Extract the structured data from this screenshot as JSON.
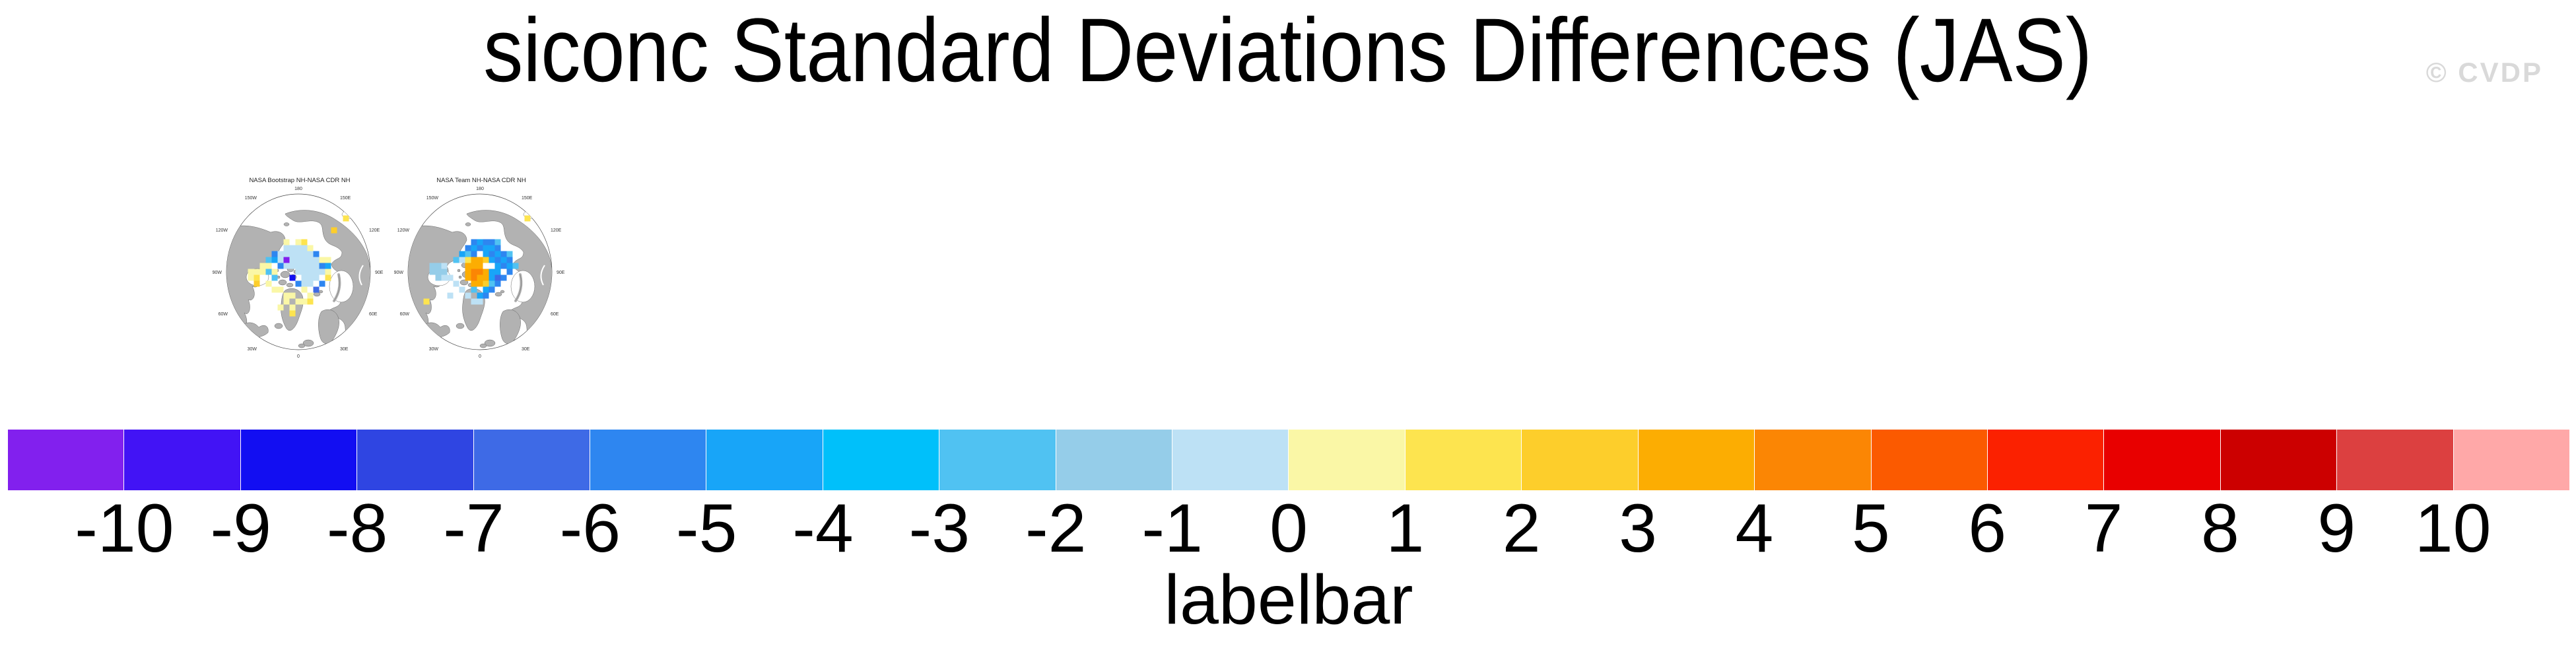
{
  "title": "siconc Standard Deviations Differences (JAS)",
  "watermark": "© CVDP",
  "panels": [
    {
      "title": "NASA Bootstrap NH-NASA CDR NH",
      "lon_labels": [
        "180",
        "150W",
        "150E",
        "120W",
        "120E",
        "90W",
        "90E",
        "60W",
        "60E",
        "30W",
        "30E",
        "0"
      ],
      "cells": [
        [
          -2,
          -4,
          10
        ],
        [
          -1,
          -4,
          10
        ],
        [
          0,
          -4,
          10
        ],
        [
          1,
          -4,
          10
        ],
        [
          -3,
          -3,
          10
        ],
        [
          -2,
          -3,
          10
        ],
        [
          -1,
          -3,
          10
        ],
        [
          0,
          -3,
          10
        ],
        [
          1,
          -3,
          10
        ],
        [
          2,
          -3,
          10
        ],
        [
          -3,
          -2,
          10
        ],
        [
          -1,
          -2,
          10
        ],
        [
          0,
          -2,
          10
        ],
        [
          1,
          -2,
          10
        ],
        [
          2,
          -2,
          10
        ],
        [
          3,
          -2,
          10
        ],
        [
          -2,
          -1,
          10
        ],
        [
          -1,
          -1,
          10
        ],
        [
          0,
          -1,
          10
        ],
        [
          1,
          -1,
          10
        ],
        [
          2,
          -1,
          10
        ],
        [
          3,
          -1,
          10
        ],
        [
          0,
          0,
          10
        ],
        [
          1,
          0,
          10
        ],
        [
          2,
          0,
          10
        ],
        [
          3,
          0,
          10
        ],
        [
          4,
          0,
          10
        ],
        [
          1,
          1,
          10
        ],
        [
          2,
          1,
          10
        ],
        [
          3,
          1,
          10
        ],
        [
          2,
          2,
          10
        ],
        [
          1,
          2,
          10
        ],
        [
          -3,
          -1,
          5
        ],
        [
          3,
          -3,
          5
        ],
        [
          4,
          -1,
          5
        ],
        [
          0,
          2,
          5
        ],
        [
          4,
          2,
          5
        ],
        [
          -4,
          -3,
          5
        ],
        [
          -4,
          -2,
          6
        ],
        [
          5,
          -1,
          6
        ],
        [
          3,
          3,
          4
        ],
        [
          -1,
          1,
          2
        ],
        [
          -2,
          -2,
          0
        ],
        [
          -5,
          0,
          8
        ],
        [
          -4,
          1,
          8
        ],
        [
          -5,
          -2,
          8
        ],
        [
          -8,
          0,
          11
        ],
        [
          -7,
          0,
          11
        ],
        [
          -6,
          0,
          11
        ],
        [
          -8,
          1,
          11
        ],
        [
          -6,
          -1,
          11
        ],
        [
          -5,
          -1,
          11
        ],
        [
          -5,
          2,
          11
        ],
        [
          -4,
          3,
          11
        ],
        [
          -3,
          3,
          11
        ],
        [
          -2,
          4,
          11
        ],
        [
          -2,
          5,
          11
        ],
        [
          -3,
          6,
          11
        ],
        [
          -1,
          6,
          11
        ],
        [
          0,
          5,
          11
        ],
        [
          -2,
          -5,
          11
        ],
        [
          0,
          -5,
          11
        ],
        [
          2,
          -4,
          11
        ],
        [
          4,
          -2,
          11
        ],
        [
          5,
          -2,
          11
        ],
        [
          1,
          3,
          11
        ],
        [
          2,
          4,
          11
        ],
        [
          1,
          5,
          11
        ],
        [
          -4,
          0,
          11
        ],
        [
          5,
          0,
          11
        ],
        [
          -1,
          4,
          11
        ],
        [
          8,
          -9,
          12
        ],
        [
          -7,
          1,
          12
        ],
        [
          -1,
          7,
          12
        ],
        [
          2,
          5,
          12
        ],
        [
          1,
          -5,
          12
        ],
        [
          5,
          1,
          12
        ],
        [
          6,
          -7,
          13
        ],
        [
          -7,
          2,
          13
        ]
      ]
    },
    {
      "title": "NASA Team NH-NASA CDR NH",
      "lon_labels": [
        "180",
        "150W",
        "150E",
        "120W",
        "120E",
        "90W",
        "90E",
        "60W",
        "60E",
        "30W",
        "30E",
        "0"
      ],
      "cells": [
        [
          -1,
          0,
          15
        ],
        [
          0,
          0,
          15
        ],
        [
          -1,
          1,
          15
        ],
        [
          -2,
          -1,
          14
        ],
        [
          -1,
          -1,
          14
        ],
        [
          0,
          -1,
          14
        ],
        [
          -2,
          0,
          14
        ],
        [
          1,
          0,
          14
        ],
        [
          -2,
          1,
          14
        ],
        [
          0,
          1,
          14
        ],
        [
          1,
          1,
          14
        ],
        [
          -1,
          2,
          14
        ],
        [
          0,
          2,
          14
        ],
        [
          -1,
          -2,
          14
        ],
        [
          0,
          -2,
          14
        ],
        [
          1,
          -2,
          13
        ],
        [
          1,
          2,
          13
        ],
        [
          -2,
          -2,
          12
        ],
        [
          8,
          -9,
          12
        ],
        [
          -9,
          5,
          12
        ],
        [
          -1,
          -5,
          5
        ],
        [
          1,
          -5,
          5
        ],
        [
          2,
          -5,
          5
        ],
        [
          -2,
          -4,
          5
        ],
        [
          0,
          -4,
          5
        ],
        [
          3,
          -4,
          5
        ],
        [
          -1,
          -3,
          5
        ],
        [
          2,
          -3,
          5
        ],
        [
          4,
          -3,
          5
        ],
        [
          3,
          -2,
          5
        ],
        [
          5,
          -2,
          5
        ],
        [
          4,
          -1,
          5
        ],
        [
          5,
          0,
          5
        ],
        [
          3,
          2,
          5
        ],
        [
          2,
          3,
          5
        ],
        [
          1,
          4,
          5
        ],
        [
          4,
          1,
          5
        ],
        [
          0,
          -5,
          6
        ],
        [
          -1,
          -4,
          6
        ],
        [
          1,
          -4,
          6
        ],
        [
          2,
          -4,
          6
        ],
        [
          1,
          -3,
          6
        ],
        [
          3,
          -3,
          6
        ],
        [
          4,
          -2,
          6
        ],
        [
          5,
          -1,
          6
        ],
        [
          2,
          1,
          6
        ],
        [
          3,
          0,
          6
        ],
        [
          1,
          3,
          6
        ],
        [
          0,
          4,
          6
        ],
        [
          -3,
          -3,
          6
        ],
        [
          2,
          0,
          6
        ],
        [
          3,
          -1,
          6
        ],
        [
          2,
          -2,
          6
        ],
        [
          3,
          -5,
          8
        ],
        [
          -2,
          -3,
          8
        ],
        [
          5,
          -3,
          8
        ],
        [
          6,
          -1,
          8
        ],
        [
          2,
          2,
          8
        ],
        [
          -1,
          3,
          8
        ],
        [
          -4,
          -2,
          8
        ],
        [
          3,
          1,
          4
        ],
        [
          -8,
          -1,
          9
        ],
        [
          -7,
          -1,
          9
        ],
        [
          -8,
          0,
          9
        ],
        [
          -7,
          0,
          9
        ],
        [
          -6,
          0,
          9
        ],
        [
          -7,
          1,
          9
        ],
        [
          -6,
          -1,
          10
        ],
        [
          -6,
          1,
          10
        ],
        [
          -5,
          1,
          10
        ],
        [
          -3,
          3,
          10
        ],
        [
          -2,
          4,
          10
        ],
        [
          -1,
          5,
          10
        ],
        [
          -4,
          2,
          10
        ],
        [
          -5,
          4,
          10
        ],
        [
          0,
          5,
          10
        ],
        [
          -3,
          -2,
          10
        ]
      ]
    }
  ],
  "labelbar": {
    "title": "labelbar",
    "ticks": [
      "-10",
      "-9",
      "-8",
      "-7",
      "-6",
      "-5",
      "-4",
      "-3",
      "-2",
      "-1",
      "0",
      "1",
      "2",
      "3",
      "4",
      "5",
      "6",
      "7",
      "8",
      "9",
      "10"
    ],
    "colors": [
      "#8220EE",
      "#4213F5",
      "#120EF2",
      "#2F45E2",
      "#3E6AE6",
      "#2E86F0",
      "#18A5F8",
      "#00C0FA",
      "#50C2F2",
      "#95CDE9",
      "#BDE1F5",
      "#FAF7A6",
      "#FDE44F",
      "#FDCE2B",
      "#FCAD02",
      "#FB8604",
      "#FB5A00",
      "#FB2100",
      "#E80000",
      "#CC0000",
      "#DC4040",
      "#FFA8A8"
    ]
  },
  "map_style": {
    "land": "#B2B2B2",
    "coast": "#666666",
    "ocean": "#FFFFFF",
    "outline": "#444444"
  },
  "chart_data": {
    "type": "heatmap",
    "title": "siconc Standard Deviations Differences (JAS)",
    "panels": [
      "NASA Bootstrap NH-NASA CDR NH",
      "NASA Team NH-NASA CDR NH"
    ],
    "colorbar_label": "labelbar",
    "colorbar_ticks": [
      -10,
      -9,
      -8,
      -7,
      -6,
      -5,
      -4,
      -3,
      -2,
      -1,
      0,
      1,
      2,
      3,
      4,
      5,
      6,
      7,
      8,
      9,
      10
    ],
    "colorbar_colors": [
      "#8220EE",
      "#4213F5",
      "#120EF2",
      "#2F45E2",
      "#3E6AE6",
      "#2E86F0",
      "#18A5F8",
      "#00C0FA",
      "#50C2F2",
      "#95CDE9",
      "#BDE1F5",
      "#FAF7A6",
      "#FDE44F",
      "#FDCE2B",
      "#FCAD02",
      "#FB8604",
      "#FB5A00",
      "#FB2100",
      "#E80000",
      "#CC0000",
      "#DC4040",
      "#FFA8A8"
    ],
    "longitude_labels": [
      "180",
      "150W",
      "150E",
      "120W",
      "120E",
      "90W",
      "90E",
      "60W",
      "60E",
      "30W",
      "30E",
      "0"
    ],
    "legend_position": "bottom",
    "notes": "Two northern-hemisphere polar difference maps; cell values span roughly -10 to 10"
  }
}
